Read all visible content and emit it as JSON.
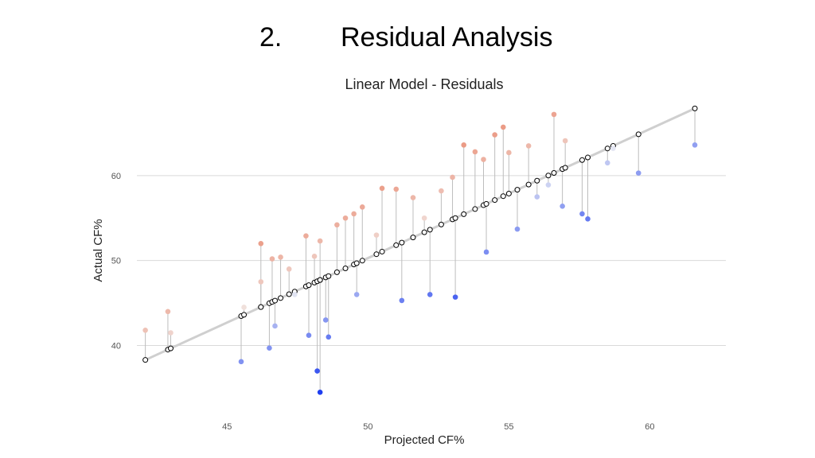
{
  "slide": {
    "number": "2.",
    "heading": "Residual Analysis"
  },
  "chart_data": {
    "type": "scatter",
    "title": "Linear Model - Residuals",
    "xlabel": "Projected CF%",
    "ylabel": "Actual CF%",
    "xlim": [
      41.8,
      62.7
    ],
    "ylim": [
      32.0,
      68.5
    ],
    "xticks": [
      45,
      50,
      55,
      60
    ],
    "yticks": [
      40,
      50,
      60
    ],
    "grid": "horizontal major",
    "fit_line": {
      "x": [
        42.1,
        61.6
      ],
      "y": [
        38.3,
        67.9
      ]
    },
    "color_scale": {
      "low": "#1f3ff0",
      "mid": "#f2f2f2",
      "high": "#e8795c",
      "limit": 13
    },
    "points": [
      {
        "x": 42.1,
        "y": 41.8
      },
      {
        "x": 42.9,
        "y": 44.0
      },
      {
        "x": 43.0,
        "y": 41.5
      },
      {
        "x": 45.5,
        "y": 38.1
      },
      {
        "x": 45.6,
        "y": 44.5
      },
      {
        "x": 46.2,
        "y": 52.0
      },
      {
        "x": 46.2,
        "y": 47.5
      },
      {
        "x": 46.5,
        "y": 39.7
      },
      {
        "x": 46.6,
        "y": 50.2
      },
      {
        "x": 46.7,
        "y": 42.3
      },
      {
        "x": 46.9,
        "y": 50.4
      },
      {
        "x": 47.2,
        "y": 49.0
      },
      {
        "x": 47.4,
        "y": 46.0
      },
      {
        "x": 47.8,
        "y": 52.9
      },
      {
        "x": 47.9,
        "y": 41.2
      },
      {
        "x": 48.1,
        "y": 50.5
      },
      {
        "x": 48.2,
        "y": 37.0
      },
      {
        "x": 48.3,
        "y": 34.5
      },
      {
        "x": 48.3,
        "y": 52.3
      },
      {
        "x": 48.5,
        "y": 43.0
      },
      {
        "x": 48.6,
        "y": 41.0
      },
      {
        "x": 48.9,
        "y": 54.2
      },
      {
        "x": 49.2,
        "y": 55.0
      },
      {
        "x": 49.5,
        "y": 55.5
      },
      {
        "x": 49.6,
        "y": 46.0
      },
      {
        "x": 49.8,
        "y": 56.3
      },
      {
        "x": 50.3,
        "y": 53.0
      },
      {
        "x": 50.5,
        "y": 58.5
      },
      {
        "x": 51.0,
        "y": 58.4
      },
      {
        "x": 51.2,
        "y": 45.3
      },
      {
        "x": 51.6,
        "y": 57.4
      },
      {
        "x": 52.0,
        "y": 55.0
      },
      {
        "x": 52.2,
        "y": 46.0
      },
      {
        "x": 52.6,
        "y": 58.2
      },
      {
        "x": 53.0,
        "y": 59.8
      },
      {
        "x": 53.1,
        "y": 45.7
      },
      {
        "x": 53.4,
        "y": 63.6
      },
      {
        "x": 53.8,
        "y": 62.8
      },
      {
        "x": 54.1,
        "y": 61.9
      },
      {
        "x": 54.2,
        "y": 51.0
      },
      {
        "x": 54.5,
        "y": 64.8
      },
      {
        "x": 54.8,
        "y": 65.7
      },
      {
        "x": 55.0,
        "y": 62.7
      },
      {
        "x": 55.3,
        "y": 53.7
      },
      {
        "x": 55.7,
        "y": 63.5
      },
      {
        "x": 56.0,
        "y": 57.5
      },
      {
        "x": 56.4,
        "y": 58.9
      },
      {
        "x": 56.6,
        "y": 67.2
      },
      {
        "x": 56.9,
        "y": 56.4
      },
      {
        "x": 57.0,
        "y": 64.1
      },
      {
        "x": 57.6,
        "y": 55.5
      },
      {
        "x": 57.8,
        "y": 54.9
      },
      {
        "x": 58.5,
        "y": 61.5
      },
      {
        "x": 58.7,
        "y": 63.2
      },
      {
        "x": 59.6,
        "y": 60.3
      },
      {
        "x": 61.6,
        "y": 63.6
      }
    ]
  }
}
